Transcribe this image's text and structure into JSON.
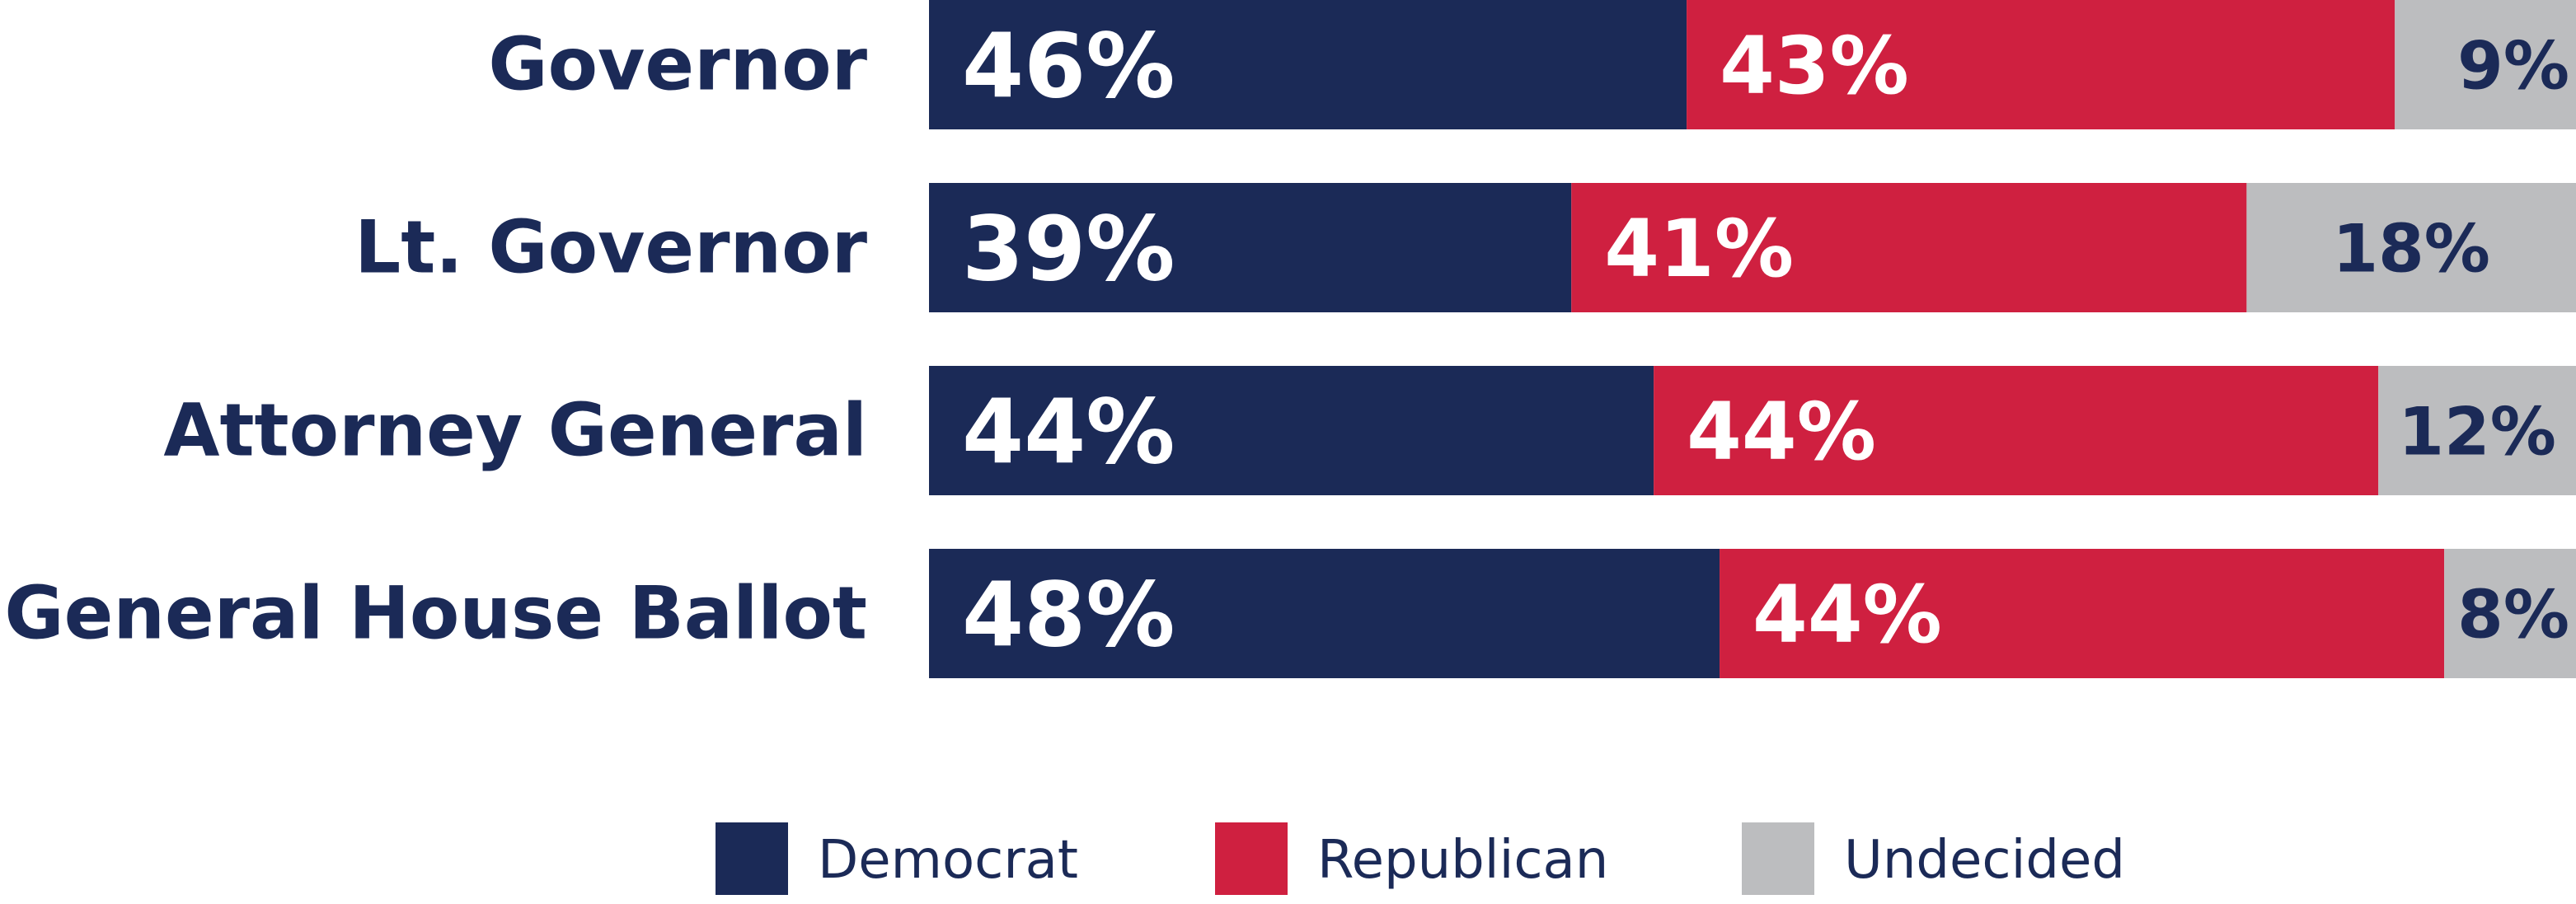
{
  "colors": {
    "democrat": "#1b2a57",
    "republican": "#cf2040",
    "undecided": "#bcbdbf",
    "label_text": "#1b2a57",
    "value_text_on_dark": "#ffffff",
    "value_text_on_light": "#1b2a57"
  },
  "chart_data": {
    "type": "bar",
    "orientation": "horizontal",
    "stacked": true,
    "categories": [
      "Governor",
      "Lt. Governor",
      "Attorney General",
      "General House Ballot"
    ],
    "series": [
      {
        "name": "Democrat",
        "values": [
          46,
          39,
          44,
          48
        ],
        "color": "#1b2a57"
      },
      {
        "name": "Republican",
        "values": [
          43,
          41,
          44,
          44
        ],
        "color": "#cf2040"
      },
      {
        "name": "Undecided",
        "values": [
          9,
          18,
          12,
          8
        ],
        "color": "#bcbdbf"
      }
    ],
    "data_labels": [
      [
        "46%",
        "43%",
        "9%"
      ],
      [
        "39%",
        "41%",
        "18%"
      ],
      [
        "44%",
        "44%",
        "12%"
      ],
      [
        "48%",
        "44%",
        "8%"
      ]
    ],
    "value_unit": "%",
    "title": "",
    "xlabel": "",
    "ylabel": "",
    "grid": false,
    "legend": {
      "position": "bottom-center",
      "items": [
        "Democrat",
        "Republican",
        "Undecided"
      ]
    }
  }
}
